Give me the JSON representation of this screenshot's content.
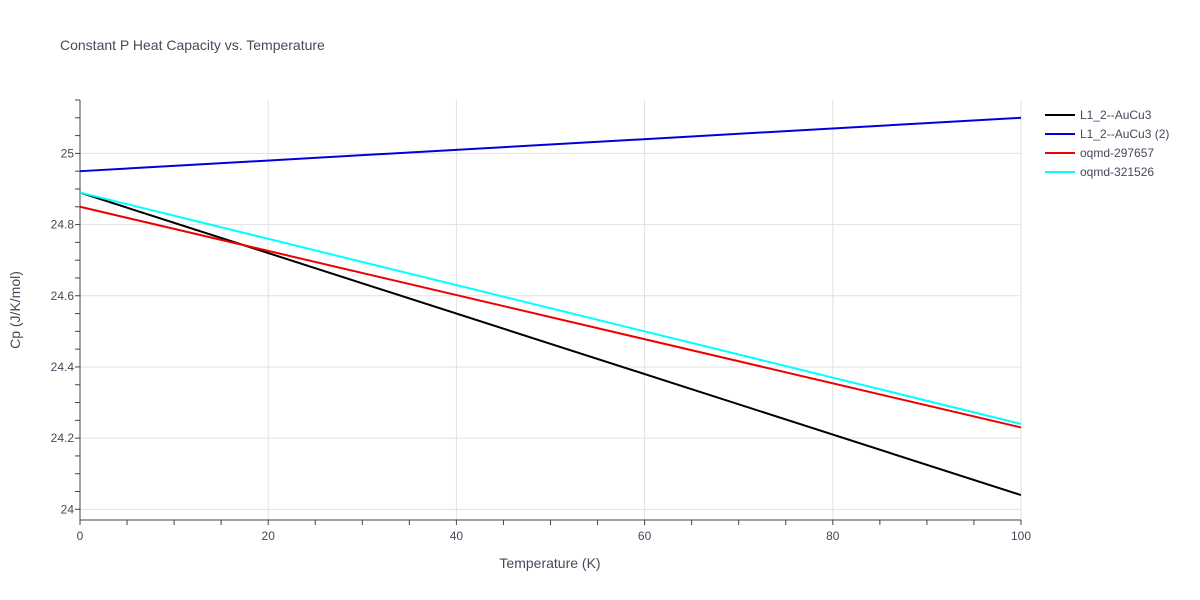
{
  "chart_data": {
    "type": "line",
    "title": "Constant P Heat Capacity vs. Temperature",
    "xlabel": "Temperature (K)",
    "ylabel": "Cp (J/K/mol)",
    "xlim": [
      0,
      100
    ],
    "ylim": [
      23.97,
      25.15
    ],
    "x_ticks": [
      0,
      20,
      40,
      60,
      80,
      100
    ],
    "x_tick_labels": [
      "0",
      "20",
      "40",
      "60",
      "80",
      "100"
    ],
    "y_ticks": [
      24.0,
      24.2,
      24.4,
      24.6,
      24.8,
      25.0
    ],
    "y_tick_labels": [
      "24",
      "24.2",
      "24.4",
      "24.6",
      "24.8",
      "25"
    ],
    "grid": true,
    "legend_position": "top-right",
    "series": [
      {
        "name": "L1_2--AuCu3",
        "color": "#000000",
        "x": [
          0,
          100
        ],
        "y": [
          24.89,
          24.04
        ]
      },
      {
        "name": "L1_2--AuCu3 (2)",
        "color": "#0000dd",
        "x": [
          0,
          100
        ],
        "y": [
          24.95,
          25.1
        ]
      },
      {
        "name": "oqmd-297657",
        "color": "#ee0000",
        "x": [
          0,
          100
        ],
        "y": [
          24.85,
          24.23
        ]
      },
      {
        "name": "oqmd-321526",
        "color": "#00ffff",
        "x": [
          0,
          100
        ],
        "y": [
          24.89,
          24.24
        ]
      }
    ]
  }
}
